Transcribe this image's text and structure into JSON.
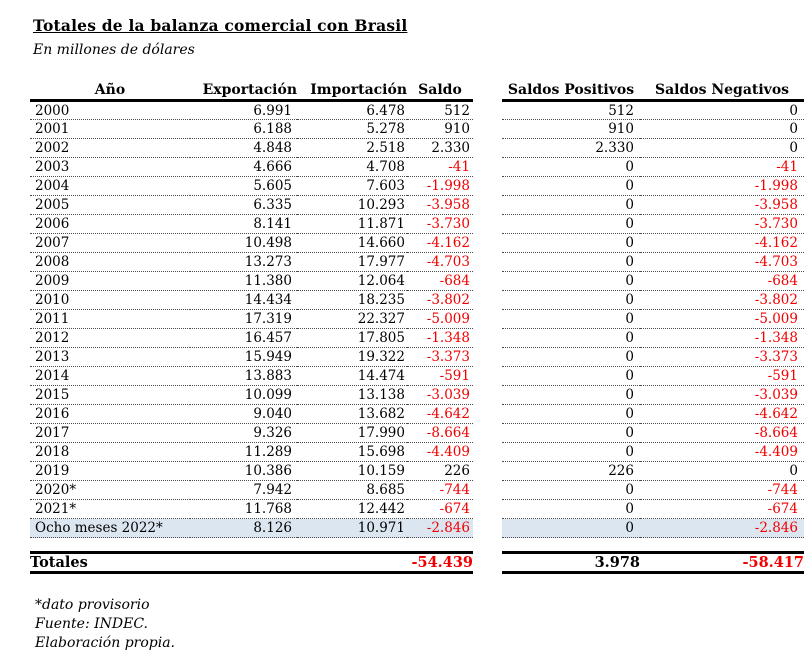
{
  "title": "Totales de la balanza comercial con Brasil",
  "subtitle": "En millones de dólares",
  "table": {
    "headers": {
      "anio": "Año",
      "exportacion": "Exportación",
      "importacion": "Importación",
      "saldo": "Saldo",
      "saldos_positivos": "Saldos Positivos",
      "saldos_negativos": "Saldos Negativos"
    },
    "rows": [
      {
        "anio": "2000",
        "exportacion": "6.991",
        "importacion": "6.478",
        "saldo": "512",
        "saldo_positivo": "512",
        "saldo_negativo": "0",
        "highlight": false
      },
      {
        "anio": "2001",
        "exportacion": "6.188",
        "importacion": "5.278",
        "saldo": "910",
        "saldo_positivo": "910",
        "saldo_negativo": "0",
        "highlight": false
      },
      {
        "anio": "2002",
        "exportacion": "4.848",
        "importacion": "2.518",
        "saldo": "2.330",
        "saldo_positivo": "2.330",
        "saldo_negativo": "0",
        "highlight": false
      },
      {
        "anio": "2003",
        "exportacion": "4.666",
        "importacion": "4.708",
        "saldo": "-41",
        "saldo_positivo": "0",
        "saldo_negativo": "-41",
        "highlight": false
      },
      {
        "anio": "2004",
        "exportacion": "5.605",
        "importacion": "7.603",
        "saldo": "-1.998",
        "saldo_positivo": "0",
        "saldo_negativo": "-1.998",
        "highlight": false
      },
      {
        "anio": "2005",
        "exportacion": "6.335",
        "importacion": "10.293",
        "saldo": "-3.958",
        "saldo_positivo": "0",
        "saldo_negativo": "-3.958",
        "highlight": false
      },
      {
        "anio": "2006",
        "exportacion": "8.141",
        "importacion": "11.871",
        "saldo": "-3.730",
        "saldo_positivo": "0",
        "saldo_negativo": "-3.730",
        "highlight": false
      },
      {
        "anio": "2007",
        "exportacion": "10.498",
        "importacion": "14.660",
        "saldo": "-4.162",
        "saldo_positivo": "0",
        "saldo_negativo": "-4.162",
        "highlight": false
      },
      {
        "anio": "2008",
        "exportacion": "13.273",
        "importacion": "17.977",
        "saldo": "-4.703",
        "saldo_positivo": "0",
        "saldo_negativo": "-4.703",
        "highlight": false
      },
      {
        "anio": "2009",
        "exportacion": "11.380",
        "importacion": "12.064",
        "saldo": "-684",
        "saldo_positivo": "0",
        "saldo_negativo": "-684",
        "highlight": false
      },
      {
        "anio": "2010",
        "exportacion": "14.434",
        "importacion": "18.235",
        "saldo": "-3.802",
        "saldo_positivo": "0",
        "saldo_negativo": "-3.802",
        "highlight": false
      },
      {
        "anio": "2011",
        "exportacion": "17.319",
        "importacion": "22.327",
        "saldo": "-5.009",
        "saldo_positivo": "0",
        "saldo_negativo": "-5.009",
        "highlight": false
      },
      {
        "anio": "2012",
        "exportacion": "16.457",
        "importacion": "17.805",
        "saldo": "-1.348",
        "saldo_positivo": "0",
        "saldo_negativo": "-1.348",
        "highlight": false
      },
      {
        "anio": "2013",
        "exportacion": "15.949",
        "importacion": "19.322",
        "saldo": "-3.373",
        "saldo_positivo": "0",
        "saldo_negativo": "-3.373",
        "highlight": false
      },
      {
        "anio": "2014",
        "exportacion": "13.883",
        "importacion": "14.474",
        "saldo": "-591",
        "saldo_positivo": "0",
        "saldo_negativo": "-591",
        "highlight": false
      },
      {
        "anio": "2015",
        "exportacion": "10.099",
        "importacion": "13.138",
        "saldo": "-3.039",
        "saldo_positivo": "0",
        "saldo_negativo": "-3.039",
        "highlight": false
      },
      {
        "anio": "2016",
        "exportacion": "9.040",
        "importacion": "13.682",
        "saldo": "-4.642",
        "saldo_positivo": "0",
        "saldo_negativo": "-4.642",
        "highlight": false
      },
      {
        "anio": "2017",
        "exportacion": "9.326",
        "importacion": "17.990",
        "saldo": "-8.664",
        "saldo_positivo": "0",
        "saldo_negativo": "-8.664",
        "highlight": false
      },
      {
        "anio": "2018",
        "exportacion": "11.289",
        "importacion": "15.698",
        "saldo": "-4.409",
        "saldo_positivo": "0",
        "saldo_negativo": "-4.409",
        "highlight": false
      },
      {
        "anio": "2019",
        "exportacion": "10.386",
        "importacion": "10.159",
        "saldo": "226",
        "saldo_positivo": "226",
        "saldo_negativo": "0",
        "highlight": false
      },
      {
        "anio": "2020*",
        "exportacion": "7.942",
        "importacion": "8.685",
        "saldo": "-744",
        "saldo_positivo": "0",
        "saldo_negativo": "-744",
        "highlight": false
      },
      {
        "anio": "2021*",
        "exportacion": "11.768",
        "importacion": "12.442",
        "saldo": "-674",
        "saldo_positivo": "0",
        "saldo_negativo": "-674",
        "highlight": false
      },
      {
        "anio": "Ocho meses 2022*",
        "exportacion": "8.126",
        "importacion": "10.971",
        "saldo": "-2.846",
        "saldo_positivo": "0",
        "saldo_negativo": "-2.846",
        "highlight": true
      }
    ],
    "totals": {
      "label": "Totales",
      "saldo": "-54.439",
      "saldo_positivo": "3.978",
      "saldo_negativo": "-58.417"
    }
  },
  "footnotes": [
    "*dato provisorio",
    "Fuente: INDEC.",
    "Elaboración propia."
  ],
  "colors": {
    "negative_value": "#f20000",
    "highlight_row": "#dce6f1"
  }
}
